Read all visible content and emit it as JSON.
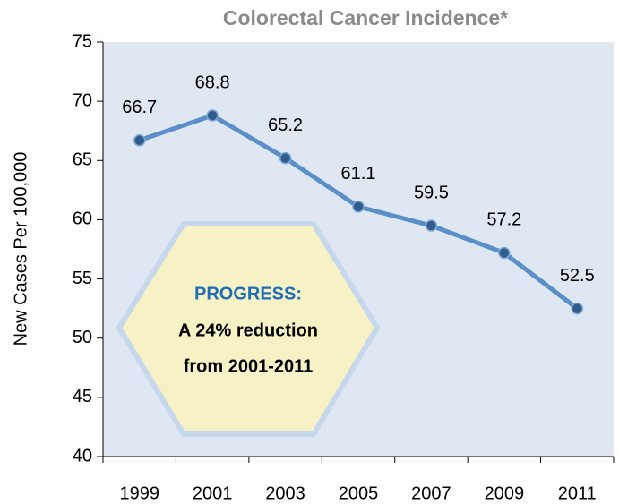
{
  "chart_data": {
    "type": "line",
    "title": "Colorectal Cancer Incidence*",
    "y_label": "New Cases Per 100,000",
    "categories": [
      "1999",
      "2001",
      "2003",
      "2005",
      "2007",
      "2009",
      "2011"
    ],
    "values": [
      66.7,
      68.8,
      65.2,
      61.1,
      59.5,
      57.2,
      52.5
    ],
    "color": "#5b8fc9",
    "ylim": [
      40,
      75
    ],
    "yticks": [
      40,
      45,
      50,
      55,
      60,
      65,
      70,
      75
    ],
    "annotations": [
      "PROGRESS:",
      "A 24% reduction",
      "from 2001-2011"
    ]
  }
}
